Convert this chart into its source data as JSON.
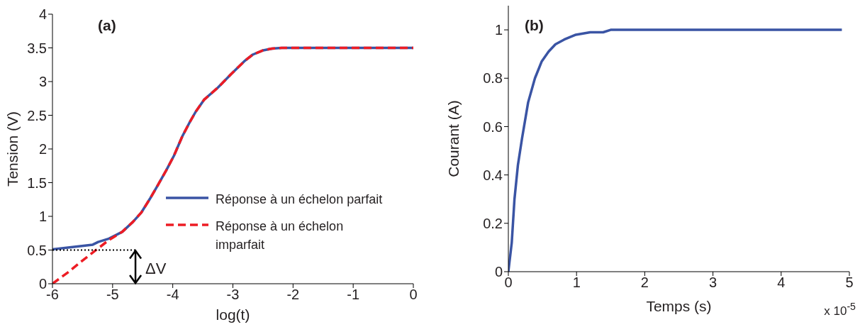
{
  "chart_data": [
    {
      "type": "line",
      "title": "(a)",
      "xlabel": "log(t)",
      "ylabel": "Tension (V)",
      "xlim": [
        -6,
        0
      ],
      "ylim": [
        0,
        4
      ],
      "xticks": [
        -6,
        -5,
        -4,
        -3,
        -2,
        -1,
        0
      ],
      "yticks": [
        0,
        0.5,
        1,
        1.5,
        2,
        2.5,
        3,
        3.5,
        4
      ],
      "legend": "bottom right",
      "series": [
        {
          "name": "Réponse à un échelon parfait",
          "color": "#3a54a4",
          "line_style": "solid",
          "x": [
            -6,
            -5.33,
            -5.24,
            -5.06,
            -4.84,
            -4.66,
            -4.52,
            -4.38,
            -4.25,
            -4.11,
            -3.98,
            -3.84,
            -3.71,
            -3.62,
            -3.48,
            -3.25,
            -3.03,
            -2.8,
            -2.67,
            -2.51,
            -2.35,
            -2.19,
            0
          ],
          "values": [
            0.51,
            0.58,
            0.62,
            0.67,
            0.77,
            0.92,
            1.06,
            1.26,
            1.46,
            1.68,
            1.9,
            2.19,
            2.41,
            2.55,
            2.73,
            2.91,
            3.11,
            3.31,
            3.4,
            3.46,
            3.49,
            3.5,
            3.5
          ]
        },
        {
          "name": "Réponse à un échelon imparfait",
          "color": "#ed1c24",
          "line_style": "dashed",
          "x": [
            -6,
            -5.74,
            -5.52,
            -5.29,
            -5.06,
            -4.84,
            -4.66,
            -4.52,
            -4.38,
            -4.25,
            -4.11,
            -3.98,
            -3.84,
            -3.71,
            -3.62,
            -3.48,
            -3.25,
            -3.03,
            -2.8,
            -2.67,
            -2.51,
            -2.35,
            -2.19,
            0
          ],
          "values": [
            0,
            0.17,
            0.33,
            0.49,
            0.65,
            0.77,
            0.92,
            1.06,
            1.26,
            1.46,
            1.68,
            1.9,
            2.19,
            2.41,
            2.55,
            2.73,
            2.91,
            3.11,
            3.31,
            3.4,
            3.46,
            3.49,
            3.5,
            3.5
          ]
        },
        {
          "color": "#000000",
          "line_style": "dotted",
          "x": [
            -6,
            -4.62
          ],
          "values": [
            0.5,
            0.5
          ]
        }
      ],
      "annotations": [
        "ΔV"
      ]
    },
    {
      "type": "line",
      "title": "(b)",
      "xlabel": "Temps (s)",
      "ylabel": "Courant (A)",
      "xlim": [
        0,
        5
      ],
      "ylim": [
        0,
        1.1
      ],
      "xticks": [
        0,
        1,
        2,
        3,
        4,
        5
      ],
      "yticks": [
        0,
        0.2,
        0.4,
        0.6,
        0.8,
        1
      ],
      "series": [
        {
          "color": "#3a54a4",
          "line_style": "solid",
          "x": [
            0,
            0.05,
            0.09,
            0.14,
            0.2,
            0.29,
            0.39,
            0.49,
            0.59,
            0.69,
            0.82,
            0.99,
            1.2,
            1.39,
            1.5,
            4.89
          ],
          "values": [
            0,
            0.12,
            0.3,
            0.44,
            0.55,
            0.7,
            0.8,
            0.87,
            0.91,
            0.94,
            0.96,
            0.98,
            0.99,
            0.99,
            1,
            1
          ]
        }
      ],
      "annotations": [
        "x 10$^{-5}$"
      ]
    }
  ]
}
